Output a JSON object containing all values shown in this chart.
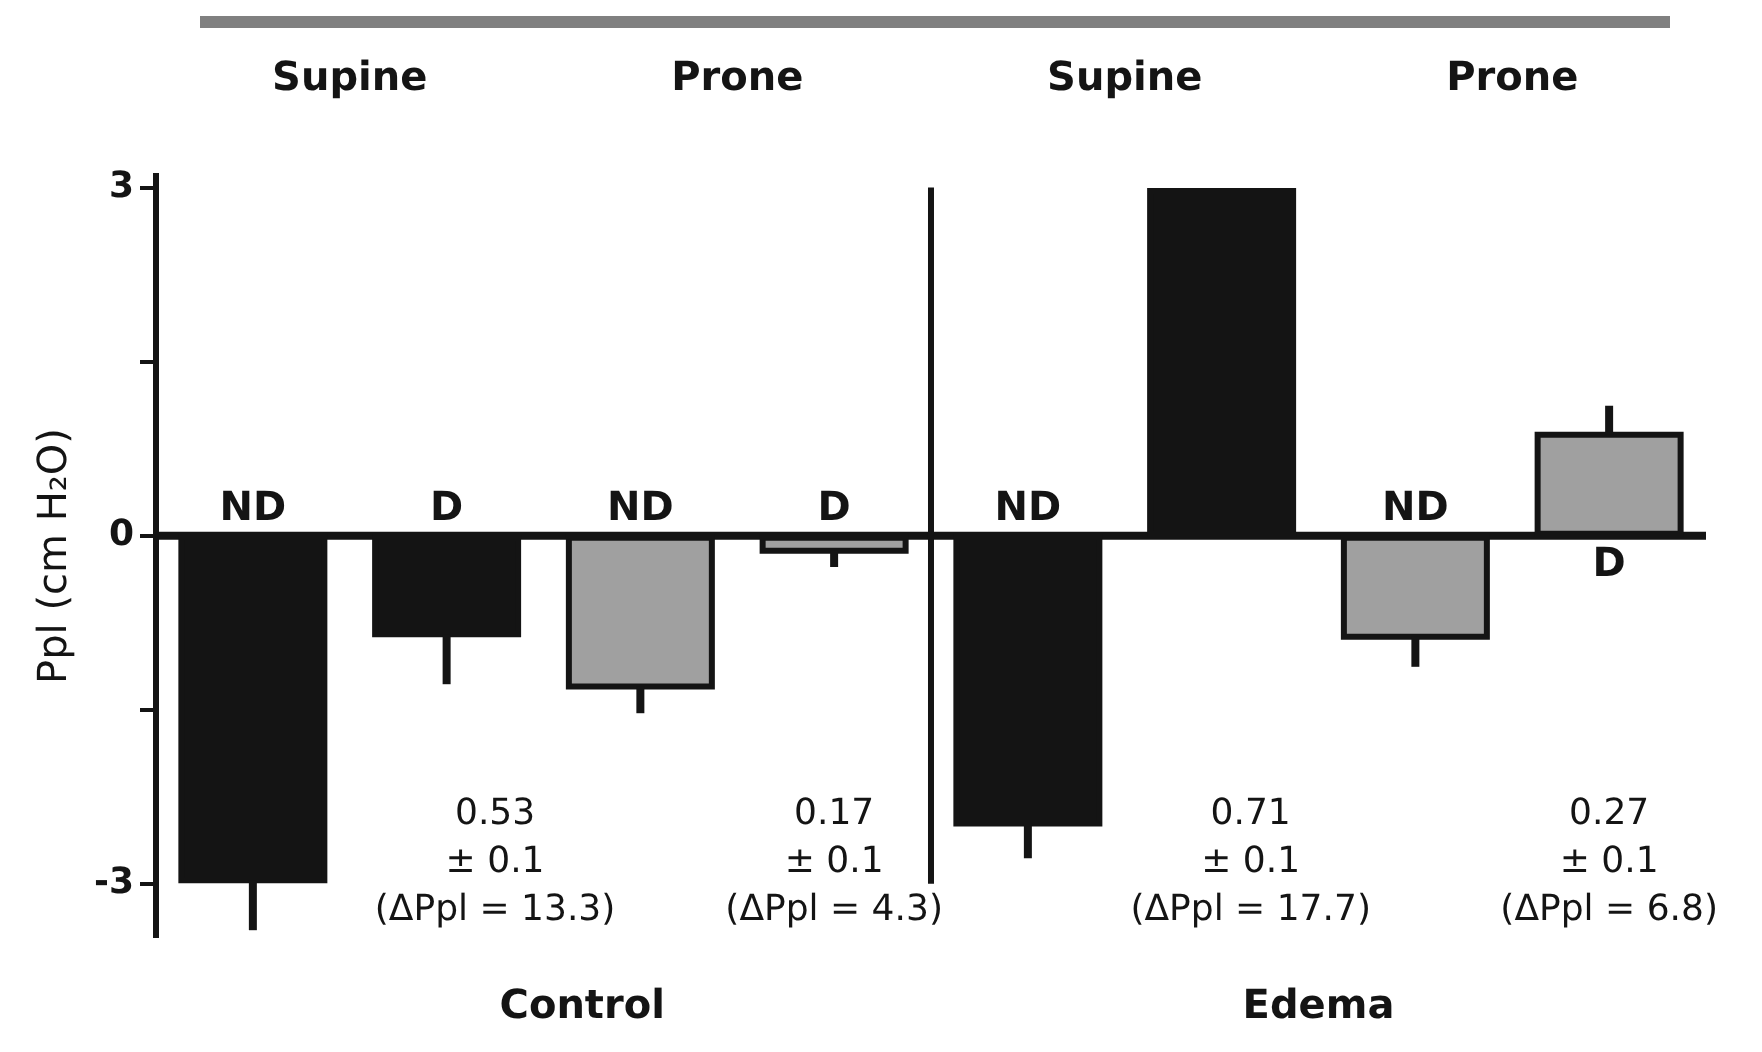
{
  "chart_data": {
    "type": "bar",
    "ylabel": "Ppl (cm H₂O)",
    "categories": [
      "ND",
      "D",
      "ND",
      "D",
      "ND",
      null,
      "ND",
      "D"
    ],
    "values": [
      -2.97,
      -0.85,
      -1.3,
      -0.13,
      -2.48,
      2.97,
      -0.87,
      0.87
    ],
    "errors": [
      [
        -3.4,
        -2.97
      ],
      [
        -1.28,
        -0.85
      ],
      [
        -1.53,
        -1.3
      ],
      [
        -0.27,
        -0.13
      ],
      [
        -2.78,
        -2.48
      ],
      null,
      [
        -1.13,
        -0.87
      ],
      [
        0.87,
        1.12
      ]
    ],
    "colors": [
      "#141414",
      "#141414",
      "#a0a0a0",
      "#a0a0a0",
      "#141414",
      "#141414",
      "#a0a0a0",
      "#a0a0a0"
    ],
    "ylim": [
      -3.45,
      3.1
    ],
    "yticks": [
      3,
      {
        "value": 1.5,
        "label": null
      },
      0,
      {
        "value": -1.5,
        "label": null
      },
      -3
    ],
    "annotations": [
      "Supine",
      "Prone",
      "Supine",
      "Prone",
      "0.53\n± 0.1\n(ΔPpl = 13.3)",
      "0.17\n± 0.1\n(ΔPpl = 4.3)",
      "0.71\n± 0.1\n(ΔPpl = 17.7)",
      "0.27\n± 0.1\n(ΔPpl = 6.8)",
      "Control",
      "Edema"
    ]
  }
}
